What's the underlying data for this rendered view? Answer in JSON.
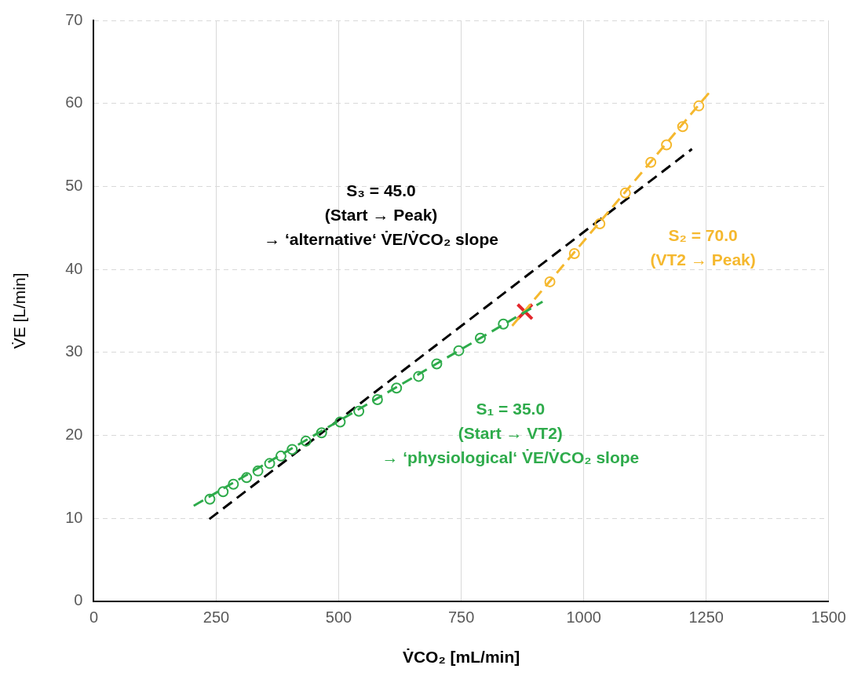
{
  "chart_data": {
    "type": "scatter",
    "xlabel": "V̇CO₂ [mL/min]",
    "ylabel": "V̇E [L/min]",
    "xlim": [
      0,
      1500
    ],
    "xticks": [
      0,
      250,
      500,
      750,
      1000,
      1250,
      1500
    ],
    "ylim": [
      0,
      70
    ],
    "yticks": [
      0,
      10,
      20,
      30,
      40,
      50,
      60,
      70
    ],
    "grid": true,
    "legend": false,
    "series": [
      {
        "type": "scatter",
        "color": "#2eab4b",
        "marker": "circle",
        "x": [
          237,
          264,
          285,
          312,
          335,
          359,
          382,
          405,
          433,
          465,
          503,
          541,
          579,
          618,
          663,
          700,
          745,
          789,
          836
        ],
        "values": [
          12.3,
          13.2,
          14.1,
          14.9,
          15.7,
          16.6,
          17.5,
          18.3,
          19.3,
          20.3,
          21.6,
          22.9,
          24.3,
          25.7,
          27.1,
          28.6,
          30.2,
          31.7,
          33.4
        ]
      },
      {
        "type": "line",
        "color": "#2eab4b",
        "marker": "none",
        "line_style": "dashed",
        "x": [
          204,
          916
        ],
        "values": [
          11.5,
          36.1
        ]
      },
      {
        "type": "scatter",
        "color": "#f5b82e",
        "marker": "circle",
        "x": [
          931,
          981,
          1033,
          1085,
          1137,
          1169,
          1202,
          1235
        ],
        "values": [
          38.5,
          41.9,
          45.5,
          49.2,
          52.9,
          55.0,
          57.2,
          59.7
        ]
      },
      {
        "type": "line",
        "color": "#f5b82e",
        "marker": "none",
        "line_style": "dashed",
        "x": [
          854,
          1259
        ],
        "values": [
          33.2,
          61.5
        ]
      },
      {
        "type": "line",
        "color": "#000000",
        "marker": "none",
        "line_style": "dashed",
        "x": [
          236,
          1221
        ],
        "values": [
          9.9,
          54.5
        ]
      },
      {
        "type": "scatter",
        "color": "#e3262b",
        "marker": "cross",
        "x": [
          880
        ],
        "values": [
          34.9
        ]
      }
    ],
    "annotations": [
      "S₃ = 45.0\n(Start → Peak)\n→ ‘alternative‘ V̇E/V̇CO₂ slope",
      "S₂ = 70.0\n(VT2 → Peak)",
      "S₁ = 35.0\n(Start → VT2)\n→ ‘physiological‘ V̇E/V̇CO₂ slope"
    ]
  }
}
